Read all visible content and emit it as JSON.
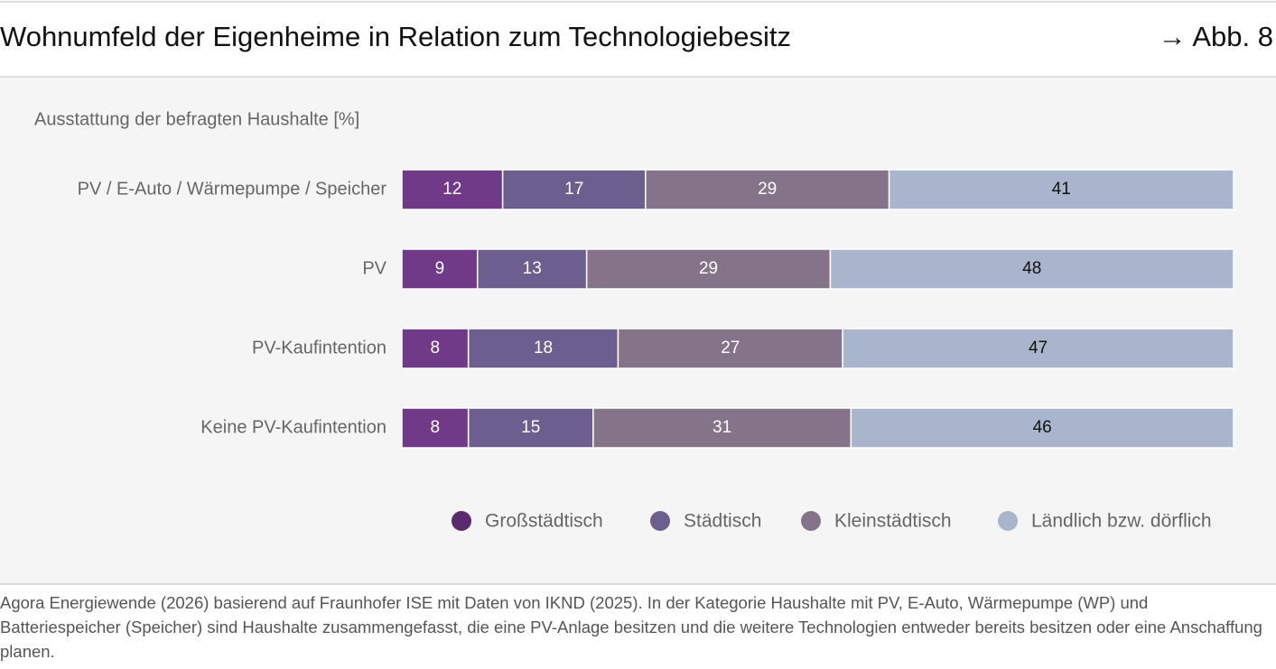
{
  "chart_data": {
    "type": "bar",
    "orientation": "horizontal",
    "stacked": "percent",
    "title": "Wohnumfeld der Eigenheime in Relation zum Technologiebesitz",
    "figure_ref": "→ Abb. 8",
    "subtitle": "Ausstattung der befragten Haushalte [%]",
    "categories": [
      "PV / E-Auto / Wärmepumpe / Speicher",
      "PV",
      "PV-Kaufintention",
      "Keine PV-Kaufintention"
    ],
    "series": [
      {
        "name": "Großstädtisch",
        "color": "#713a89",
        "legend_color": "#5b2a6c",
        "label_color": "#ffffff",
        "values": [
          12,
          9,
          8,
          8
        ]
      },
      {
        "name": "Städtisch",
        "color": "#6c5f8f",
        "legend_color": "#6c5f8f",
        "label_color": "#ffffff",
        "values": [
          17,
          13,
          18,
          15
        ]
      },
      {
        "name": "Kleinstädtisch",
        "color": "#857389",
        "legend_color": "#857389",
        "label_color": "#ffffff",
        "values": [
          29,
          29,
          27,
          31
        ]
      },
      {
        "name": "Ländlich bzw. dörflich",
        "color": "#a8b5cc",
        "legend_color": "#a8b5cc",
        "label_color": "#111111",
        "values": [
          41,
          48,
          47,
          46
        ]
      }
    ],
    "source": "Agora Energiewende (2026) basierend auf Fraunhofer ISE mit Daten von IKND (2025). In der Kategorie Haushalte mit PV, E-Auto, Wärmepumpe (WP) und Batteriespeicher (Speicher) sind Haushalte zusammengefasst, die eine PV-Anlage besitzen und die weitere Technologien entweder bereits besitzen oder eine Anschaffung planen."
  }
}
